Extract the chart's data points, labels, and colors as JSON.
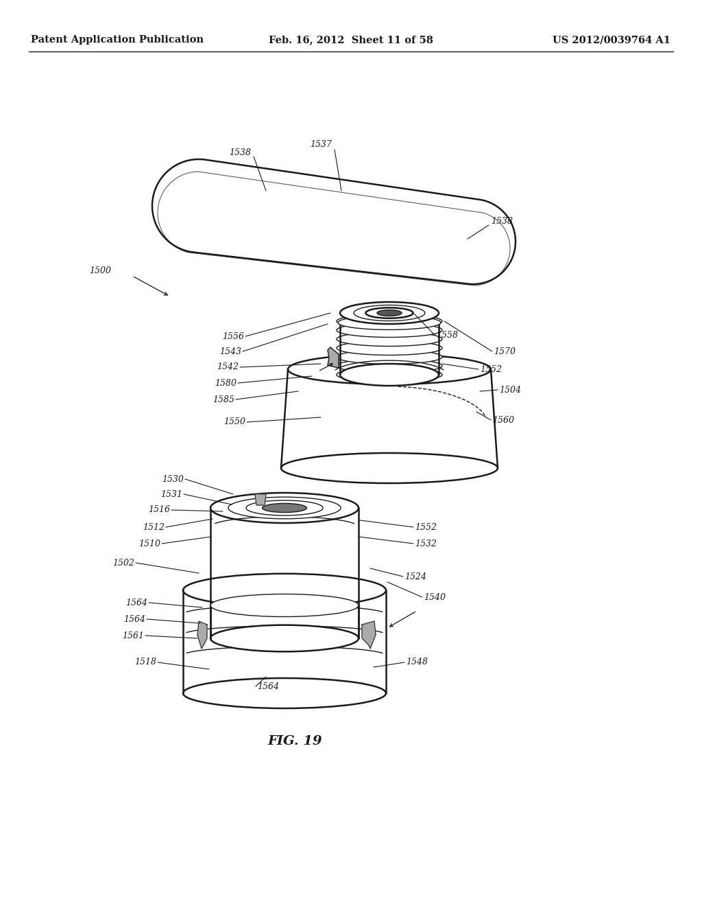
{
  "bg_color": "#ffffff",
  "header_left": "Patent Application Publication",
  "header_mid": "Feb. 16, 2012  Sheet 11 of 58",
  "header_right": "US 2012/0039764 A1",
  "figure_label": "FIG. 19",
  "line_color": "#1a1a1a",
  "text_color": "#1a1a1a",
  "lw_main": 1.8,
  "lw_thin": 1.0,
  "lw_hair": 0.7
}
